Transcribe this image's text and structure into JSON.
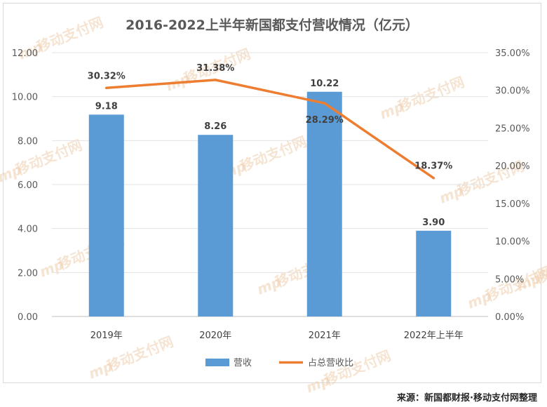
{
  "chart_data": {
    "type": "bar",
    "title": "2016-2022上半年新国都支付营收情况（亿元）",
    "categories": [
      "2019年",
      "2020年",
      "2021年",
      "2022年上半年"
    ],
    "series": [
      {
        "name": "营收",
        "type": "bar",
        "axis": "left",
        "color": "#5b9bd5",
        "values": [
          9.18,
          8.26,
          10.22,
          3.9
        ],
        "labels": [
          "9.18",
          "8.26",
          "10.22",
          "3.90"
        ]
      },
      {
        "name": "占总营收比",
        "type": "line",
        "axis": "right",
        "color": "#ed7d31",
        "values": [
          30.32,
          31.38,
          28.29,
          18.37
        ],
        "labels": [
          "30.32%",
          "31.38%",
          "28.29%",
          "18.37%"
        ]
      }
    ],
    "y_left": {
      "range": [
        0,
        12
      ],
      "ticks": [
        "0.00",
        "2.00",
        "4.00",
        "6.00",
        "8.00",
        "10.00",
        "12.00"
      ]
    },
    "y_right": {
      "range": [
        0,
        35
      ],
      "ticks": [
        "0.00%",
        "5.00%",
        "10.00%",
        "15.00%",
        "20.00%",
        "25.00%",
        "30.00%",
        "35.00%"
      ]
    },
    "grid": true,
    "legend_position": "bottom"
  },
  "watermark": "移动支付网",
  "watermark_logo": "mp",
  "source_note": "来源：新国都财报·移动支付网整理"
}
